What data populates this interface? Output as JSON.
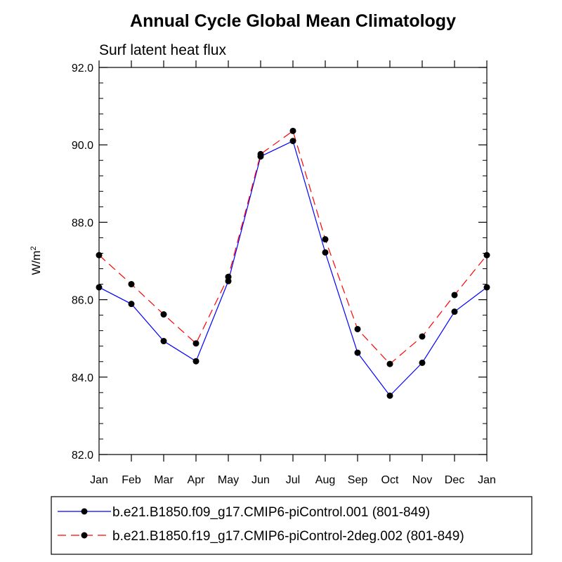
{
  "chart_data": {
    "type": "line",
    "title": "Annual Cycle Global Mean Climatology",
    "subtitle": "Surf latent heat flux",
    "ylabel": "W/m",
    "ylabel_sup": "2",
    "xlabel": "",
    "categories": [
      "Jan",
      "Feb",
      "Mar",
      "Apr",
      "May",
      "Jun",
      "Jul",
      "Aug",
      "Sep",
      "Oct",
      "Nov",
      "Dec",
      "Jan"
    ],
    "ylim": [
      82.0,
      92.0
    ],
    "yticks": [
      82.0,
      84.0,
      86.0,
      88.0,
      90.0,
      92.0
    ],
    "ytick_labels": [
      "82.0",
      "84.0",
      "86.0",
      "88.0",
      "90.0",
      "92.0"
    ],
    "series": [
      {
        "name": "b.e21.B1850.f09_g17.CMIP6-piControl.001 (801-849)",
        "color": "#0000ff",
        "dash": "solid",
        "marker": "circle",
        "values": [
          86.32,
          85.89,
          84.93,
          84.41,
          86.48,
          89.7,
          90.1,
          87.22,
          84.63,
          83.52,
          84.37,
          85.69,
          86.32
        ]
      },
      {
        "name": "b.e21.B1850.f19_g17.CMIP6-piControl-2deg.002 (801-849)",
        "color": "#ff0000",
        "dash": "dashed",
        "marker": "circle",
        "values": [
          87.15,
          86.4,
          85.62,
          84.87,
          86.59,
          89.76,
          90.36,
          87.56,
          85.24,
          84.34,
          85.05,
          86.12,
          87.15
        ]
      }
    ],
    "legend": {
      "position": "bottom"
    }
  }
}
